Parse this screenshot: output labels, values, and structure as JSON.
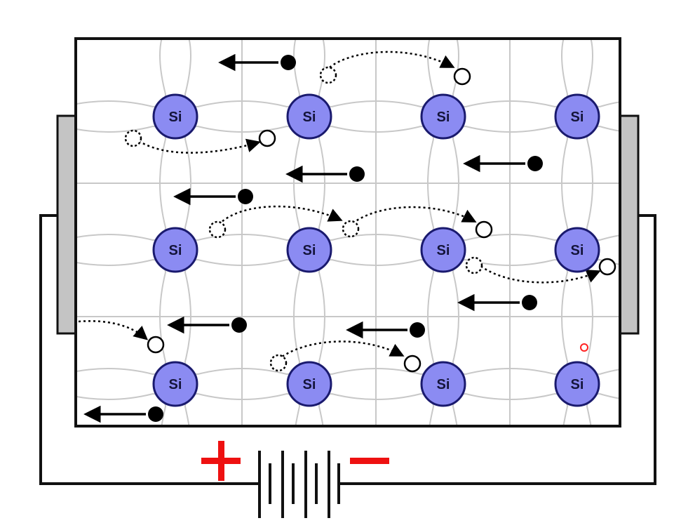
{
  "atoms": {
    "label": "Si",
    "fill": "#8b8bf2",
    "stroke": "#1a1a6e",
    "grid": [
      [
        "Si",
        "Si",
        "Si",
        "Si"
      ],
      [
        "Si",
        "Si",
        "Si",
        "Si"
      ],
      [
        "Si",
        "Si",
        "Si",
        "Si"
      ]
    ]
  },
  "battery": {
    "positive_symbol": "+",
    "negative_symbol": "−",
    "sign_color": "#ee1111"
  },
  "colors": {
    "crystal_border": "#111111",
    "bond_lines": "#c8c8c8",
    "electrode": "#c4c4c4",
    "wire": "#111111",
    "electron": "#000000",
    "hole_fill": "#ffffff",
    "cursor": "#ff2222"
  },
  "icons": {
    "electron": "filled-circle",
    "hole": "hollow-circle",
    "drift_arrow": "left-arrow",
    "hole_path": "dotted-curved-arrow"
  }
}
